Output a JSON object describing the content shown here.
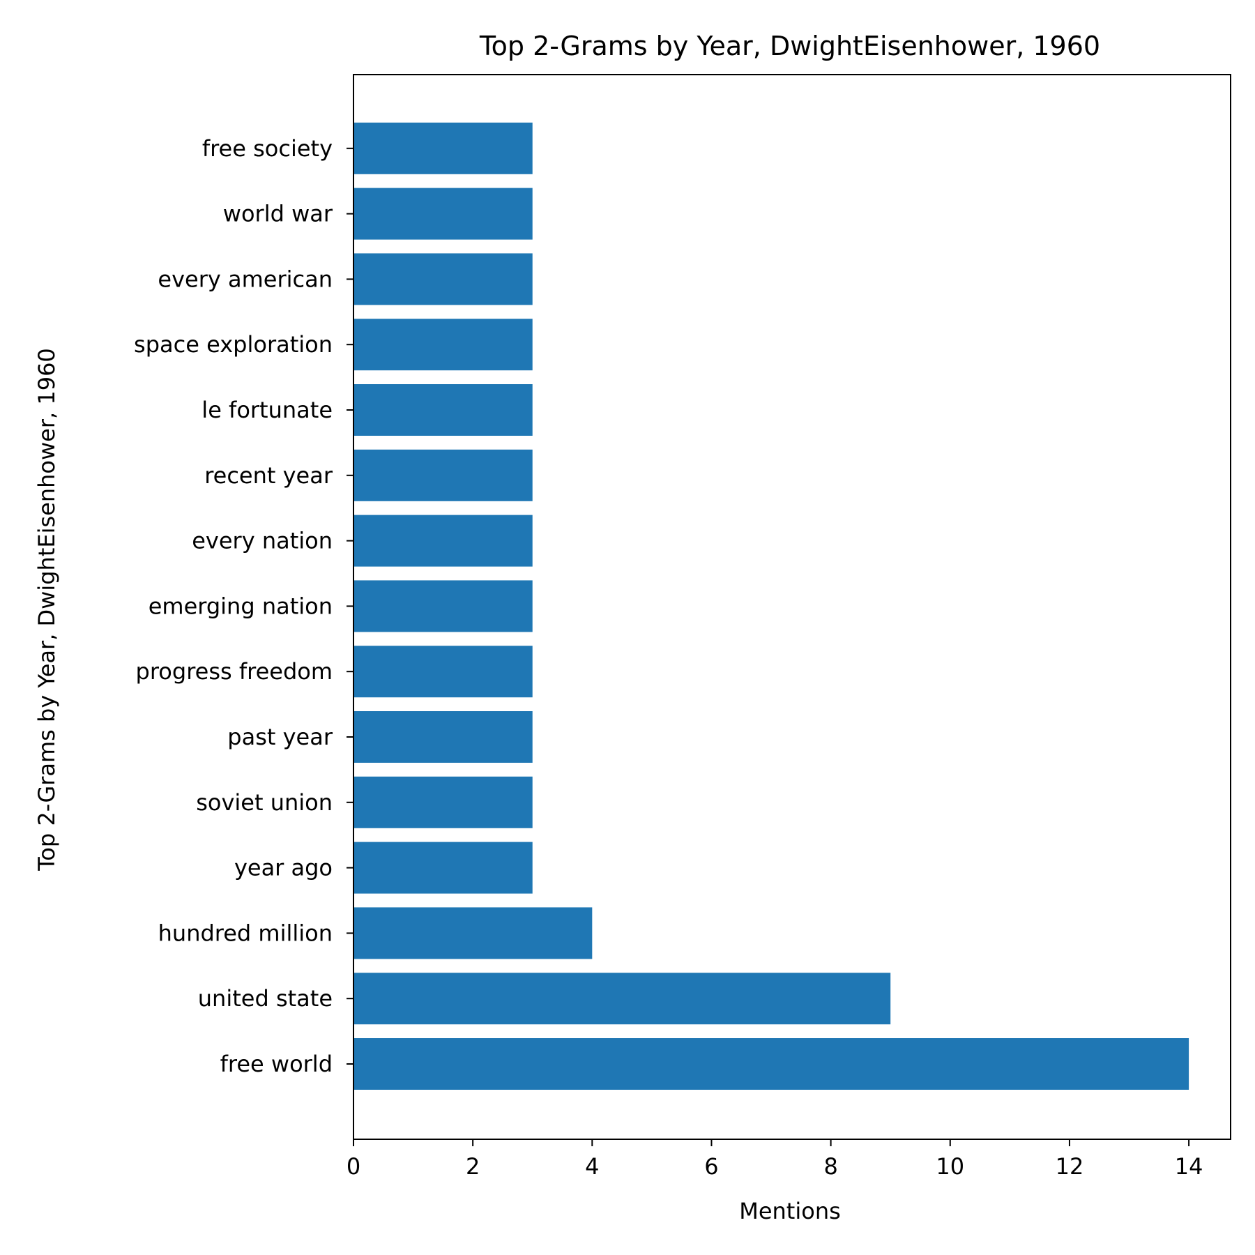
{
  "chart_data": {
    "type": "bar",
    "orientation": "horizontal",
    "title": "Top 2-Grams by Year, DwightEisenhower, 1960",
    "xlabel": "Mentions",
    "ylabel": "Top 2-Grams by Year, DwightEisenhower, 1960",
    "categories": [
      "free world",
      "united state",
      "hundred million",
      "year ago",
      "soviet union",
      "past year",
      "progress freedom",
      "emerging nation",
      "every nation",
      "recent year",
      "le fortunate",
      "space exploration",
      "every american",
      "world war",
      "free society"
    ],
    "values": [
      14,
      9,
      4,
      3,
      3,
      3,
      3,
      3,
      3,
      3,
      3,
      3,
      3,
      3,
      3
    ],
    "xlim": [
      0,
      14.7
    ],
    "xticks": [
      0,
      2,
      4,
      6,
      8,
      10,
      12,
      14
    ],
    "grid": false,
    "bar_color": "#1f77b4"
  }
}
